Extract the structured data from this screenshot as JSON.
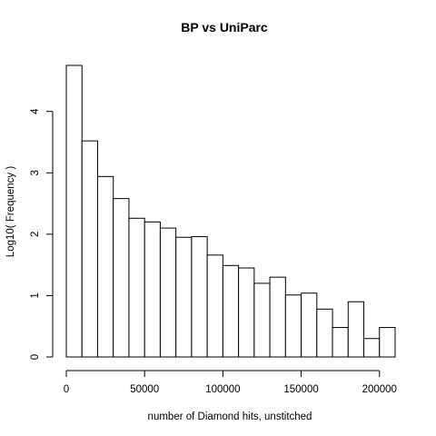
{
  "chart_data": {
    "type": "bar",
    "title": "BP vs UniParc",
    "xlabel": "number of Diamond hits, unstitched",
    "ylabel": "Log10( Frequency )",
    "bin_width": 10000,
    "bin_starts": [
      0,
      10000,
      20000,
      30000,
      40000,
      50000,
      60000,
      70000,
      80000,
      90000,
      100000,
      110000,
      120000,
      130000,
      140000,
      150000,
      160000,
      170000,
      180000,
      190000,
      200000
    ],
    "values": [
      4.75,
      3.52,
      2.94,
      2.58,
      2.26,
      2.2,
      2.1,
      1.95,
      1.96,
      1.66,
      1.49,
      1.45,
      1.2,
      1.3,
      1.01,
      1.04,
      0.78,
      0.48,
      0.9,
      0.3,
      0.48
    ],
    "xlim": [
      0,
      210000
    ],
    "ylim": [
      0,
      4.75
    ],
    "xticks": [
      0,
      50000,
      100000,
      150000,
      200000
    ],
    "xtick_labels": [
      "0",
      "50000",
      "100000",
      "150000",
      "200000"
    ],
    "yticks": [
      0,
      1,
      2,
      3,
      4
    ],
    "ytick_labels": [
      "0",
      "1",
      "2",
      "3",
      "4"
    ],
    "grid": false,
    "bar_fill": "#ffffff",
    "bar_stroke": "#000000"
  }
}
